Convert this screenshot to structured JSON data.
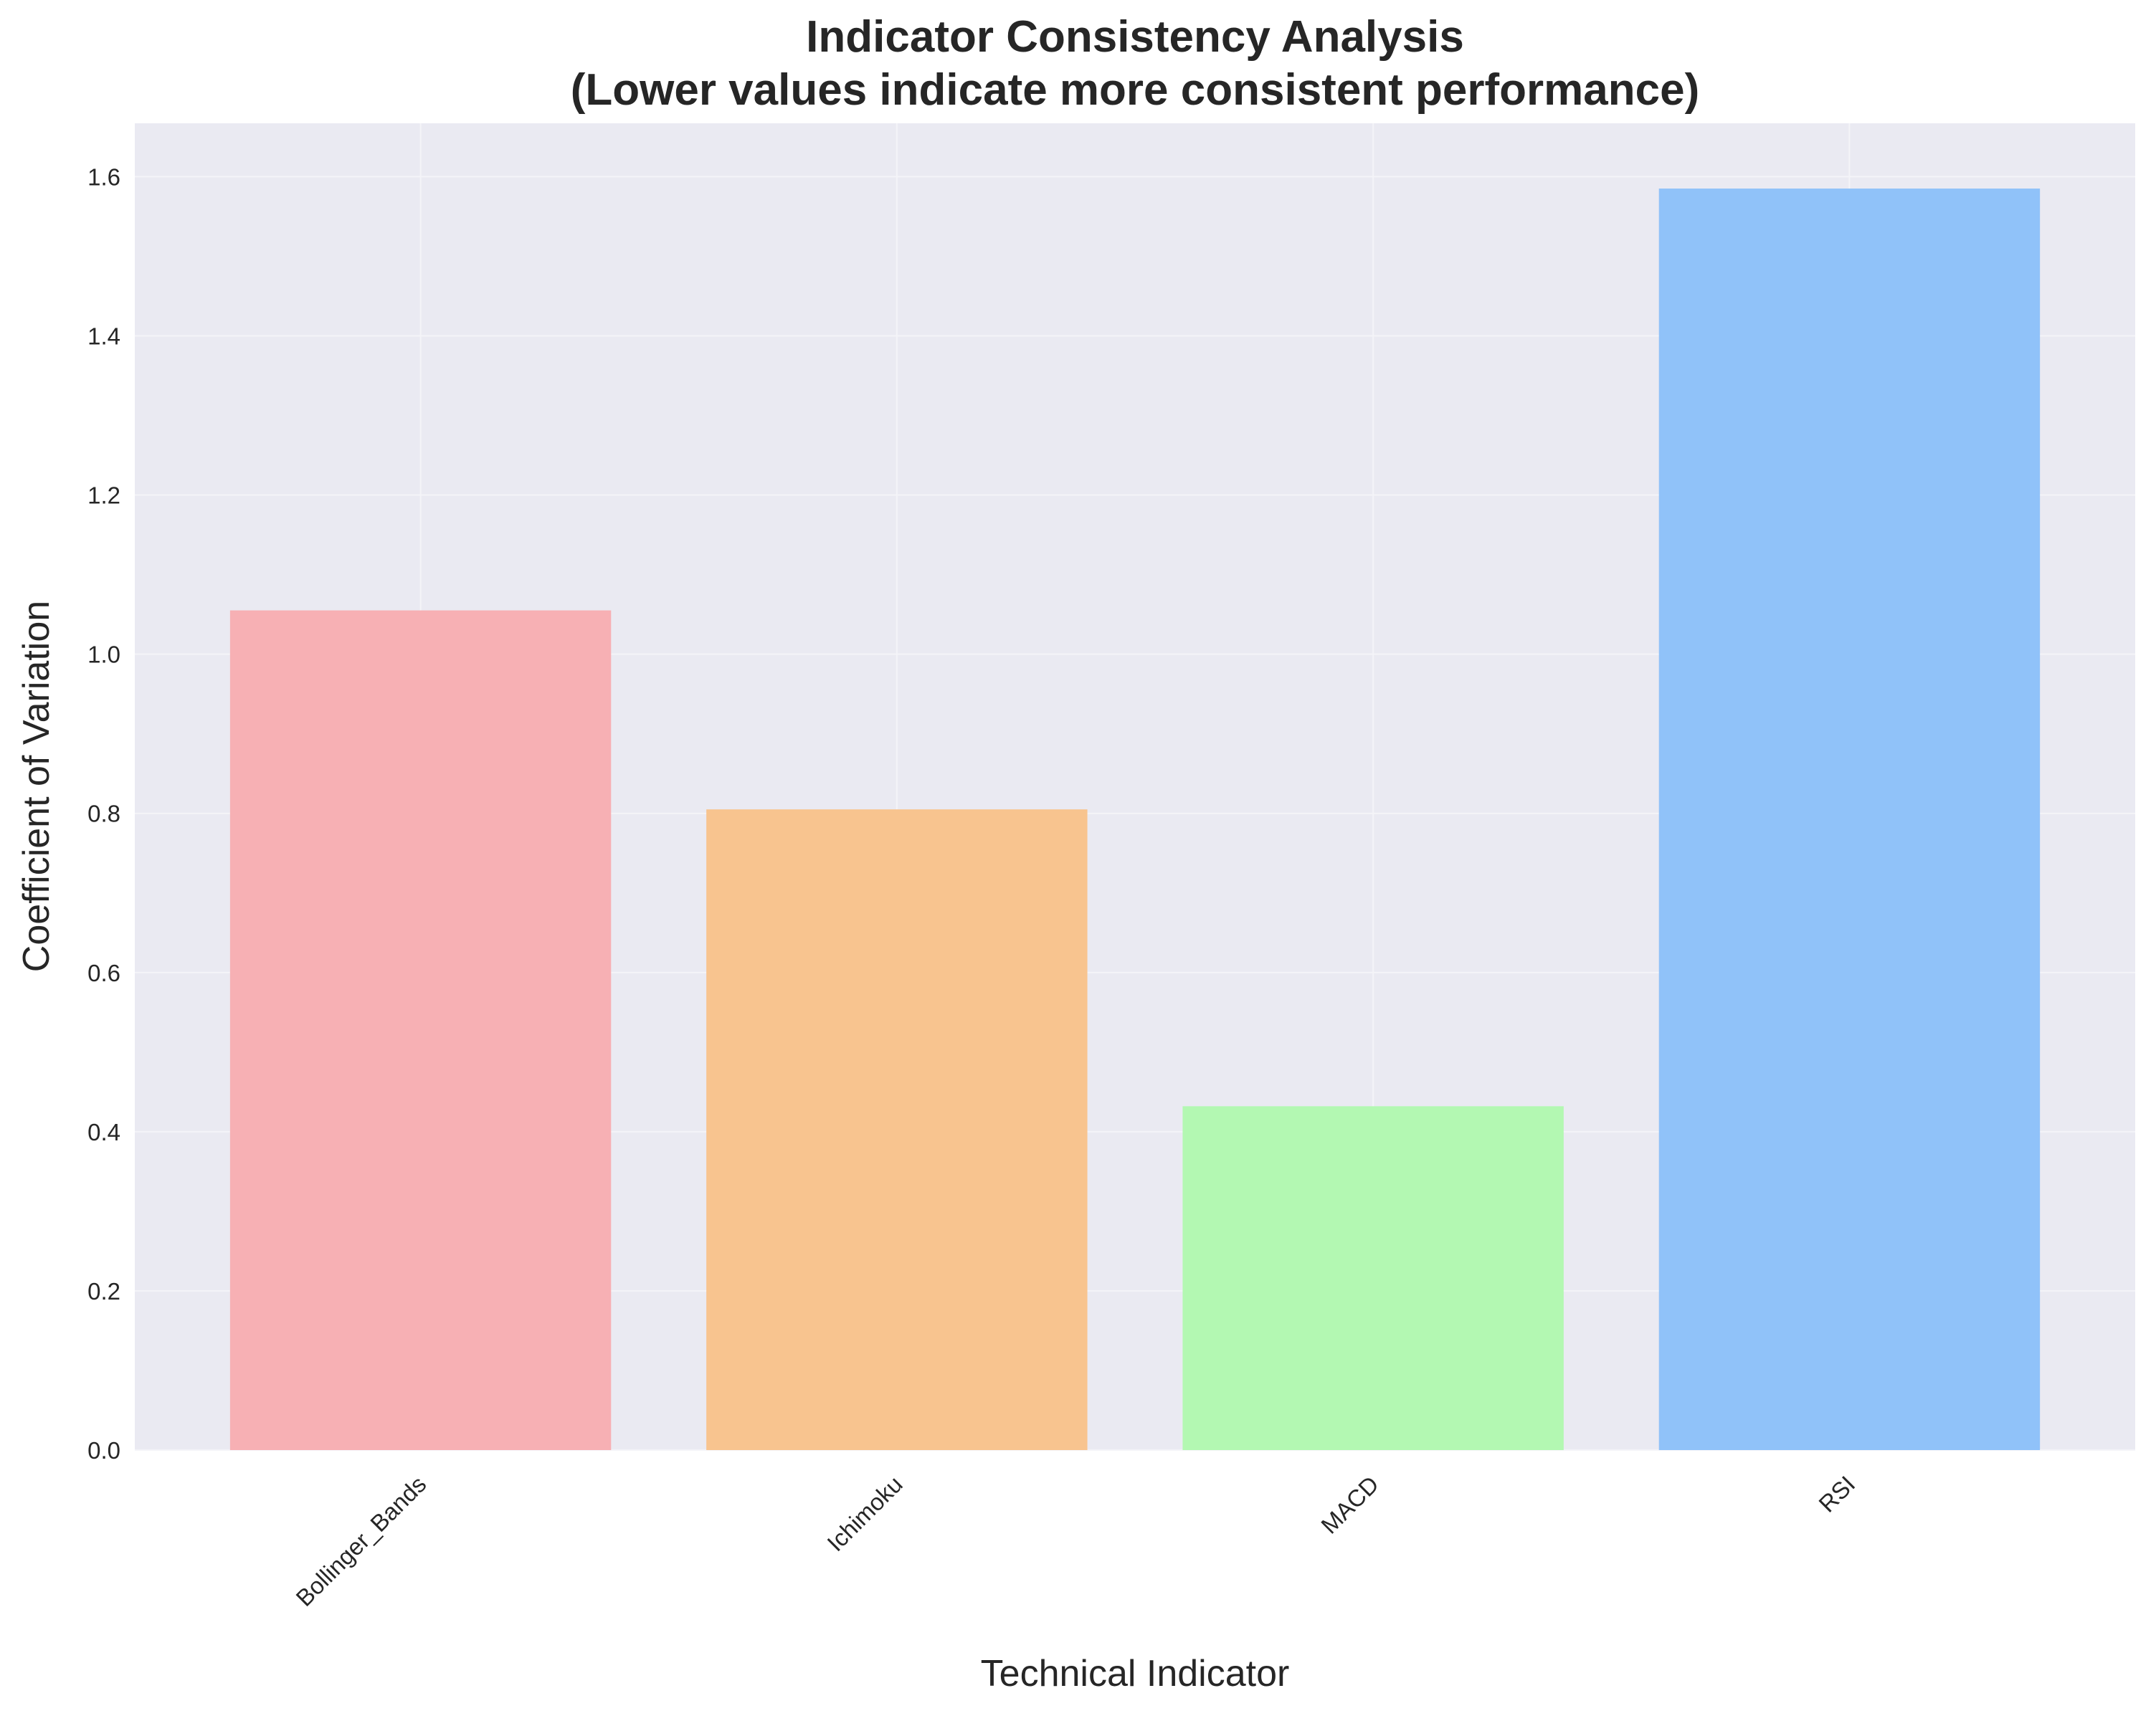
{
  "chart_data": {
    "type": "bar",
    "title_line1": "Indicator Consistency Analysis",
    "title_line2": "(Lower values indicate more consistent performance)",
    "xlabel": "Technical Indicator",
    "ylabel": "Coefficient of Variation",
    "categories": [
      "Bollinger_Bands",
      "Ichimoku",
      "MACD",
      "RSI"
    ],
    "values": [
      1.055,
      0.805,
      0.432,
      1.585
    ],
    "colors": [
      "#f7b0b4",
      "#f8c48f",
      "#b3f8b2",
      "#90c2f9"
    ],
    "ylim": [
      0,
      1.667
    ],
    "yticks": [
      "0.0",
      "0.2",
      "0.4",
      "0.6",
      "0.8",
      "1.0",
      "1.2",
      "1.4",
      "1.6"
    ],
    "grid": true,
    "legend": "none"
  },
  "style": {
    "plot_background": "#eaeaf2",
    "grid_color": "#f4f4f8",
    "text_color": "#262626"
  }
}
